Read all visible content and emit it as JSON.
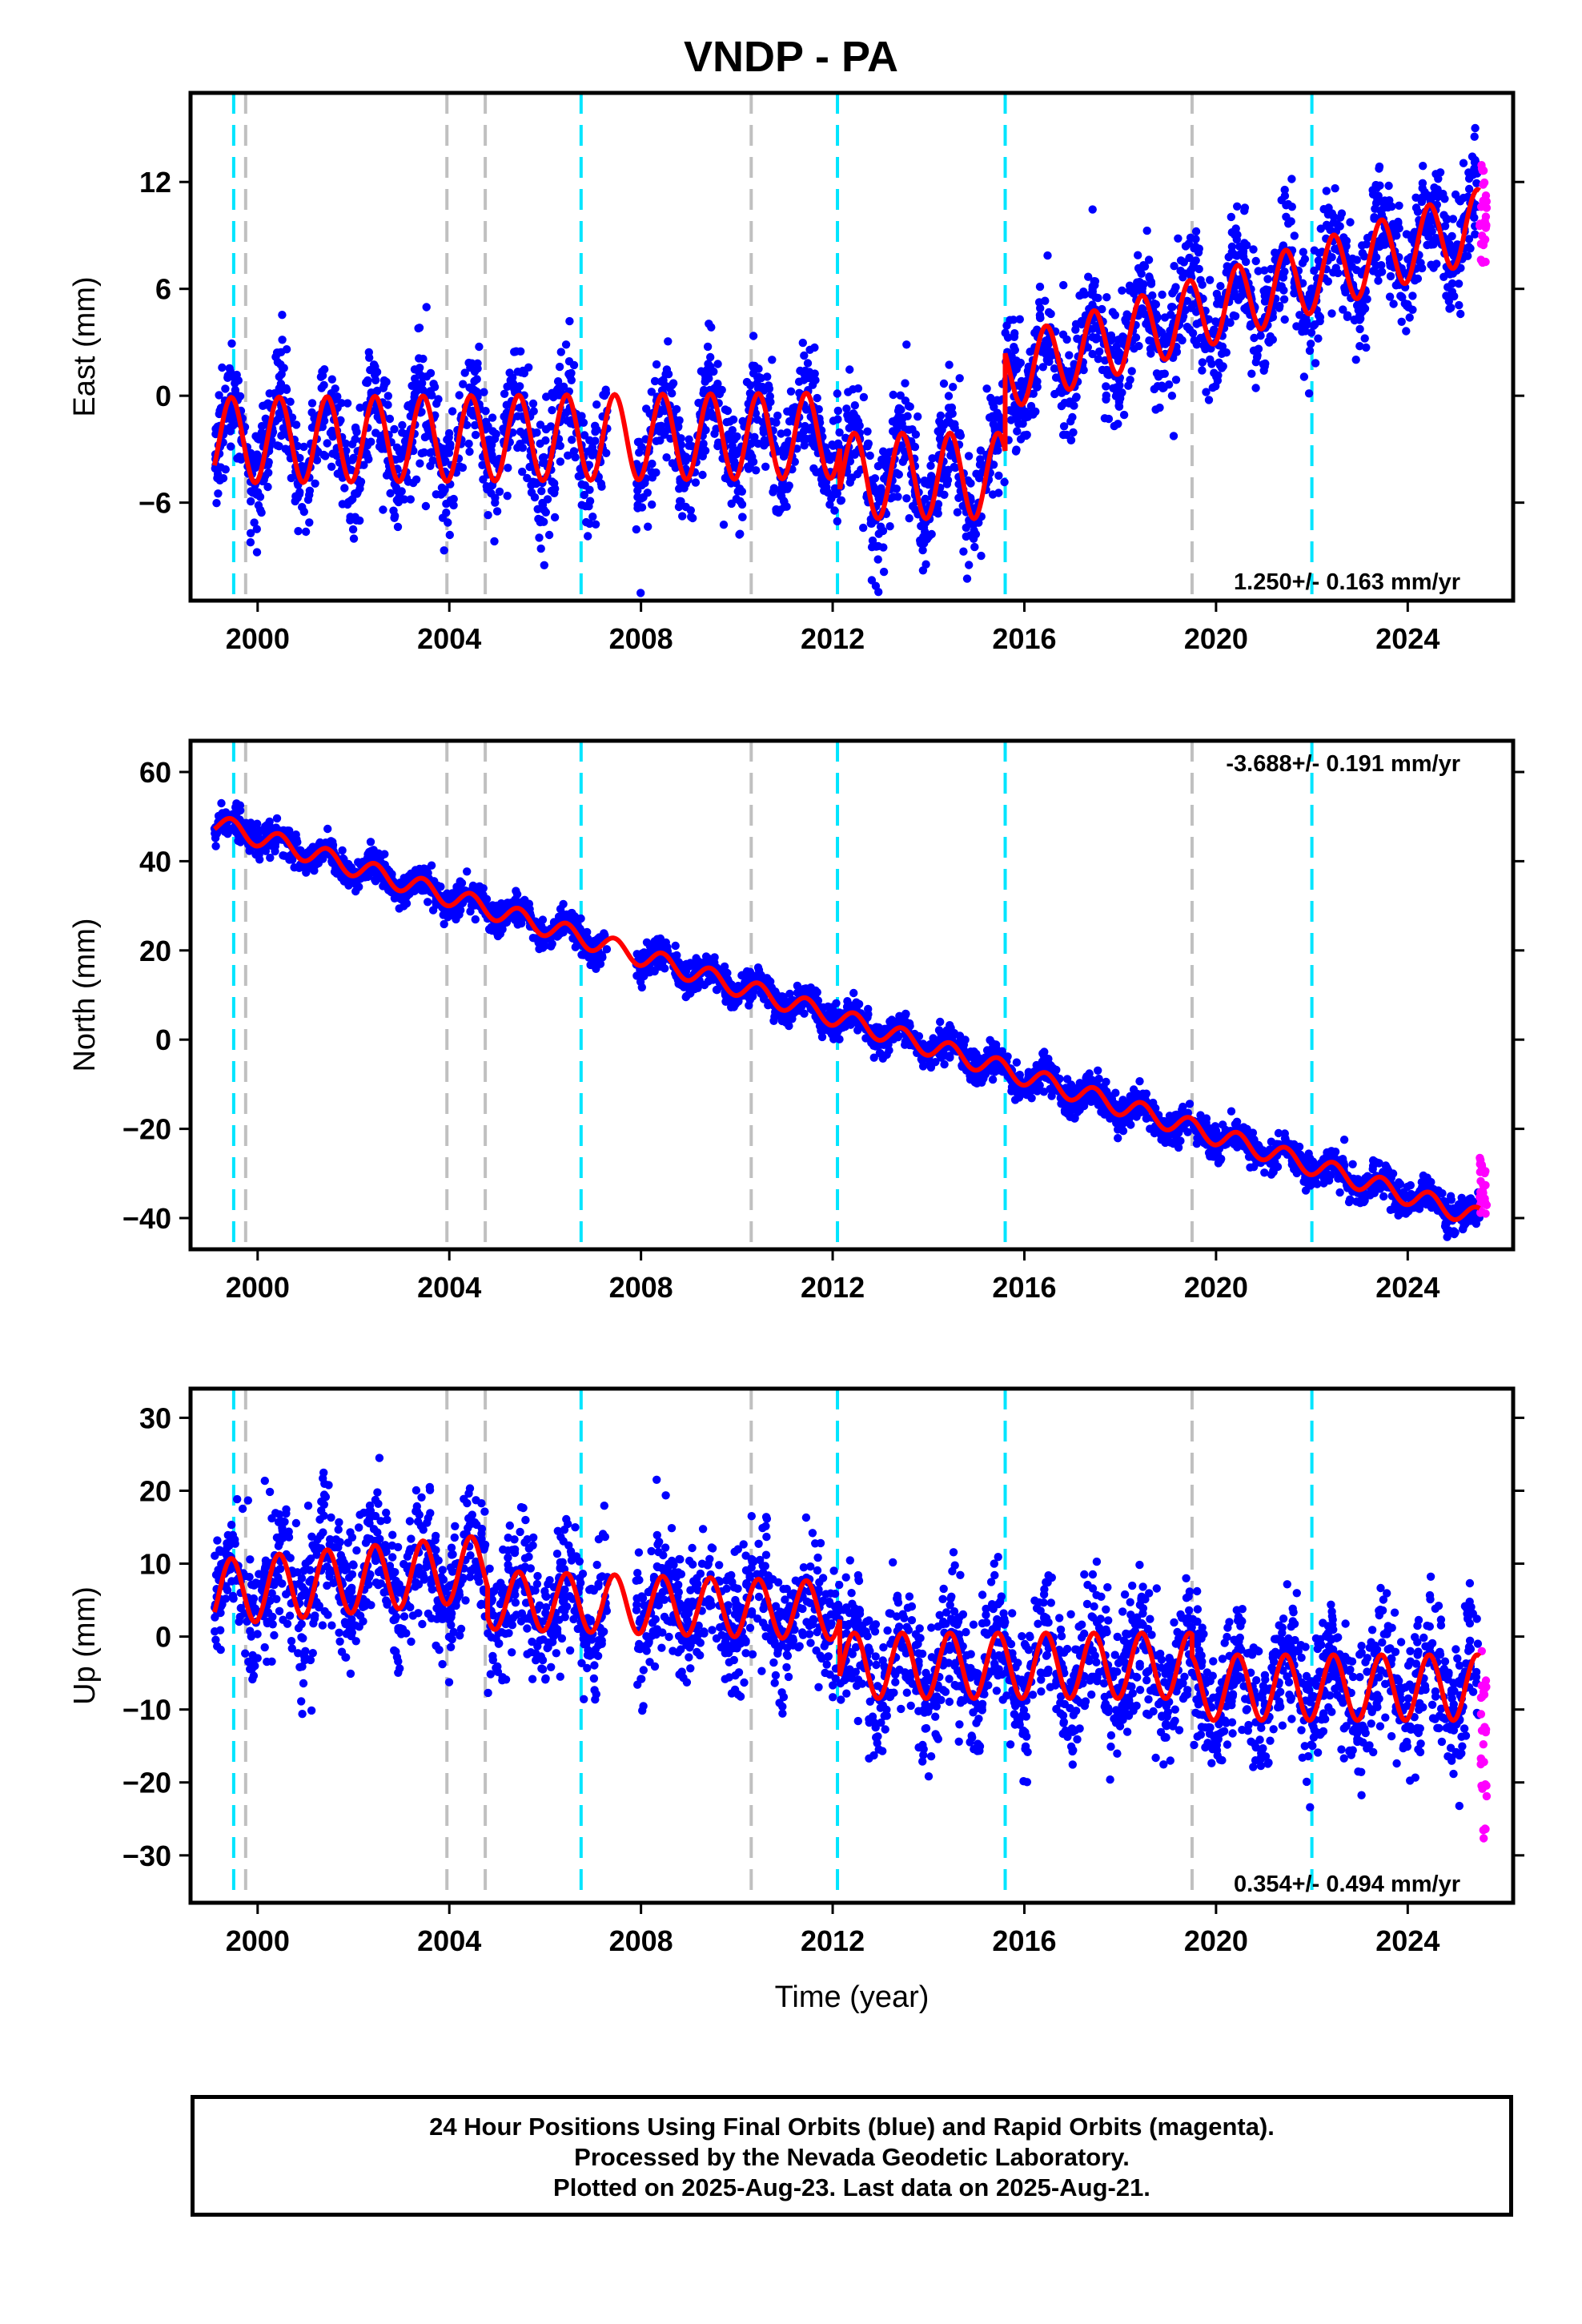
{
  "title": "VNDP - PA",
  "footer": {
    "line1": "24 Hour Positions Using Final Orbits (blue) and Rapid Orbits (magenta).",
    "line2": "Processed by the Nevada Geodetic Laboratory.",
    "line3": "Plotted on 2025-Aug-23. Last data on 2025-Aug-21."
  },
  "colors": {
    "final": "#0000ff",
    "rapid": "#ff00ff",
    "model": "#ff0000",
    "antenna_change": "#00e5ff",
    "equipment_change": "#c0c0c0"
  },
  "chart_data": [
    {
      "type": "scatter",
      "ylabel": "East (mm)",
      "xlabel": "",
      "xlim": [
        1998.6,
        2026.2
      ],
      "ylim": [
        -11.5,
        17
      ],
      "yticks": [
        -6,
        0,
        6,
        12
      ],
      "xticks": [
        2000,
        2004,
        2008,
        2012,
        2016,
        2020,
        2024
      ],
      "rate_text": "1.250+/- 0.163 mm/yr",
      "rate_position": "bottom-right",
      "series": [
        {
          "kind": "final",
          "segments": [
            {
              "x": [
                1999.1,
                2012.15
              ],
              "offset": -2.5,
              "trend": 0.02,
              "amp": 2.4
            },
            {
              "x": [
                2012.15,
                2015.6
              ],
              "offset": -4.5,
              "trend": 0.0,
              "amp": 2.4
            },
            {
              "x": [
                2015.6,
                2025.5
              ],
              "offset": 1.2,
              "trend": 0.85,
              "amp": 2.0
            }
          ],
          "scatter": 1.6
        },
        {
          "kind": "rapid",
          "x": [
            2025.5,
            2025.65
          ],
          "y": [
            7,
            13.5
          ]
        }
      ]
    },
    {
      "type": "scatter",
      "ylabel": "North (mm)",
      "xlabel": "",
      "xlim": [
        1998.6,
        2026.2
      ],
      "ylim": [
        -47,
        67
      ],
      "yticks": [
        -40,
        -20,
        0,
        20,
        40,
        60
      ],
      "xticks": [
        2000,
        2004,
        2008,
        2012,
        2016,
        2020,
        2024
      ],
      "rate_text": "-3.688+/- 0.191 mm/yr",
      "rate_position": "top-right",
      "series": [
        {
          "kind": "final",
          "segments": [
            {
              "x": [
                1999.1,
                2025.5
              ],
              "offset": 48.5,
              "trend": -3.35,
              "amp": 2.2
            }
          ],
          "scatter": 1.8
        },
        {
          "kind": "rapid",
          "x": [
            2025.5,
            2025.65
          ],
          "y": [
            -39,
            -26
          ]
        }
      ]
    },
    {
      "type": "scatter",
      "ylabel": "Up (mm)",
      "xlabel": "Time (year)",
      "xlim": [
        1998.6,
        2026.2
      ],
      "ylim": [
        -36.5,
        34
      ],
      "yticks": [
        -30,
        -20,
        -10,
        0,
        10,
        20,
        30
      ],
      "xticks": [
        2000,
        2004,
        2008,
        2012,
        2016,
        2020,
        2024
      ],
      "rate_text": "0.354+/- 0.494 mm/yr",
      "rate_position": "bottom-right",
      "series": [
        {
          "kind": "final",
          "segments": [
            {
              "x": [
                1999.1,
                2004.8
              ],
              "offset": 6,
              "trend": 0.6,
              "amp": 4.5
            },
            {
              "x": [
                2004.8,
                2012.15
              ],
              "offset": 5,
              "trend": -0.2,
              "amp": 4.0
            },
            {
              "x": [
                2012.15,
                2019.5
              ],
              "offset": -4,
              "trend": 0.0,
              "amp": 4.5
            },
            {
              "x": [
                2019.5,
                2025.5
              ],
              "offset": -7,
              "trend": 0.0,
              "amp": 4.5
            }
          ],
          "scatter": 4.5
        },
        {
          "kind": "rapid",
          "x": [
            2025.5,
            2025.65
          ],
          "y": [
            -28,
            -2
          ]
        }
      ]
    }
  ],
  "antenna_change_years": [
    1999.5,
    2006.75,
    2012.1,
    2015.6,
    2022.0
  ],
  "equipment_change_years": [
    1999.75,
    2003.95,
    2004.75,
    2010.3,
    2019.5
  ]
}
